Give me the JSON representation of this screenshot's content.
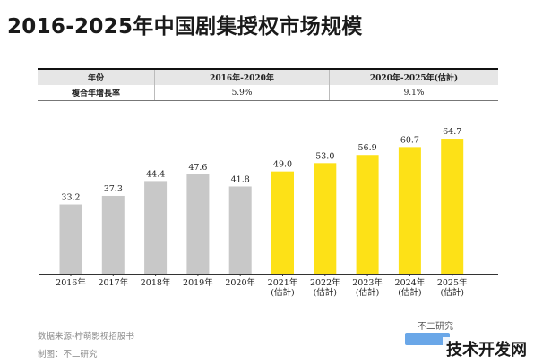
{
  "chart_data": {
    "type": "bar",
    "title": "2016-2025年中国剧集授权市场规模",
    "categories": [
      [
        "2016年"
      ],
      [
        "2017年"
      ],
      [
        "2018年"
      ],
      [
        "2019年"
      ],
      [
        "2020年"
      ],
      [
        "2021年",
        "(估計)"
      ],
      [
        "2022年",
        "(估計)"
      ],
      [
        "2023年",
        "(估計)"
      ],
      [
        "2024年",
        "(估計)"
      ],
      [
        "2025年",
        "(估計)"
      ]
    ],
    "values": [
      33.2,
      37.3,
      44.4,
      47.6,
      41.8,
      49.0,
      53.0,
      56.9,
      60.7,
      64.7
    ],
    "value_labels": [
      "33.2",
      "37.3",
      "44.4",
      "47.6",
      "41.8",
      "49.0",
      "53.0",
      "56.9",
      "60.7",
      "64.7"
    ],
    "estimated": [
      false,
      false,
      false,
      false,
      false,
      true,
      true,
      true,
      true,
      true
    ],
    "colors": {
      "actual": "#c8c8c8",
      "estimated": "#fde117"
    },
    "ylim": [
      0,
      72
    ],
    "grid": false,
    "xlabel": "",
    "ylabel": ""
  },
  "cagr_table": {
    "header": [
      "年份",
      "2016年-2020年",
      "2020年-2025年(估計)"
    ],
    "row": [
      "複合年增長率",
      "5.9%",
      "9.1%"
    ]
  },
  "footer": {
    "source": "数据来源-柠萌影视招股书",
    "producer": "制图：不二研究"
  },
  "brand": "不二研究",
  "watermark": "技术开发网"
}
